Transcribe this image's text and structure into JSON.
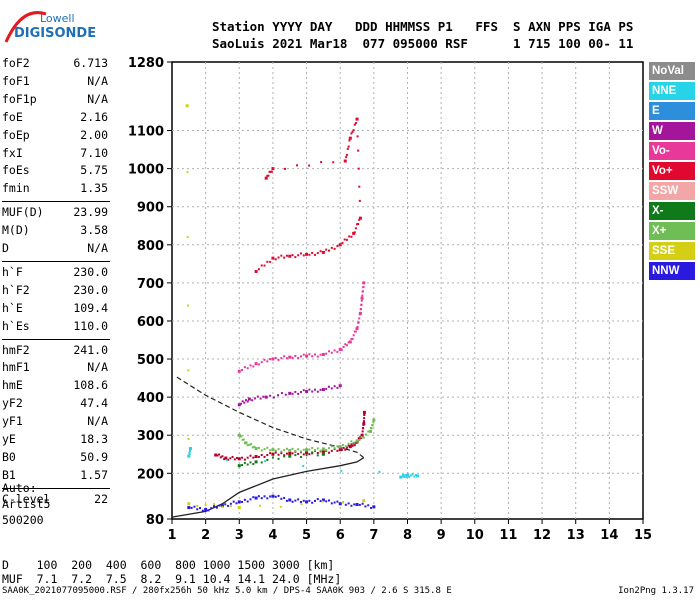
{
  "logo": {
    "line1": "Lowell",
    "line2": "DIGISONDE"
  },
  "header": {
    "line1": "Station YYYY DAY   DDD HHMMSS P1   FFS  S AXN PPS IGA PS",
    "line2": "SaoLuis 2021 Mar18  077 095000 RSF      1 715 100 00- 11"
  },
  "params": [
    {
      "name": "foF2",
      "value": "6.713"
    },
    {
      "name": "foF1",
      "value": "N/A"
    },
    {
      "name": "foF1p",
      "value": "N/A"
    },
    {
      "name": "foE",
      "value": "2.16"
    },
    {
      "name": "foEp",
      "value": "2.00"
    },
    {
      "name": "fxI",
      "value": "7.10"
    },
    {
      "name": "foEs",
      "value": "5.75"
    },
    {
      "name": "fmin",
      "value": "1.35"
    },
    {
      "name": "MUF(D)",
      "value": "23.99"
    },
    {
      "name": "M(D)",
      "value": "3.58"
    },
    {
      "name": "D",
      "value": "N/A"
    },
    {
      "name": "h`F",
      "value": "230.0"
    },
    {
      "name": "h`F2",
      "value": "230.0"
    },
    {
      "name": "h`E",
      "value": "109.4"
    },
    {
      "name": "h`Es",
      "value": "110.0"
    },
    {
      "name": "hmF2",
      "value": "241.0"
    },
    {
      "name": "hmF1",
      "value": "N/A"
    },
    {
      "name": "hmE",
      "value": "108.6"
    },
    {
      "name": "yF2",
      "value": "47.4"
    },
    {
      "name": "yF1",
      "value": "N/A"
    },
    {
      "name": "yE",
      "value": "18.3"
    },
    {
      "name": "B0",
      "value": "50.9"
    },
    {
      "name": "B1",
      "value": "1.57"
    },
    {
      "name": "C-level",
      "value": "22"
    }
  ],
  "auto": {
    "line1": "Auto:",
    "line2": "Artist5",
    "line3": "500200"
  },
  "legend": [
    {
      "label": "NoVal",
      "color": "#8c8c8c"
    },
    {
      "label": "NNE",
      "color": "#27d3e6"
    },
    {
      "label": "E",
      "color": "#2d8fdc"
    },
    {
      "label": "W",
      "color": "#a3159b"
    },
    {
      "label": "Vo-",
      "color": "#e8399b"
    },
    {
      "label": "Vo+",
      "color": "#e0082f"
    },
    {
      "label": "SSW",
      "color": "#f3a6a6"
    },
    {
      "label": "X-",
      "color": "#0f7a1a"
    },
    {
      "label": "X+",
      "color": "#6fbd55"
    },
    {
      "label": "SSE",
      "color": "#d4cf14"
    },
    {
      "label": "NNW",
      "color": "#2a1ae0"
    }
  ],
  "bottom": {
    "line1": "D    100  200  400  600  800 1000 1500 3000 [km]",
    "line2": "MUF  7.1  7.2  7.5  8.2  9.1 10.4 14.1 24.0 [MHz]"
  },
  "footer": {
    "left": "SAA0K_2021077095000.RSF / 280fx256h 50 kHz 5.0 km / DPS-4 SAA0K 903 / 2.6 S 315.8 E",
    "right": "Ion2Png 1.3.17"
  },
  "chart_data": {
    "type": "scatter",
    "xlim": [
      1,
      15
    ],
    "ylim": [
      80,
      1280
    ],
    "x_ticks": [
      1,
      2,
      3,
      4,
      5,
      6,
      7,
      8,
      9,
      10,
      11,
      12,
      13,
      14,
      15
    ],
    "y_ticks": [
      80,
      200,
      300,
      400,
      500,
      600,
      700,
      800,
      900,
      1000,
      1100,
      1280
    ],
    "grid": true,
    "legend_position": "right",
    "series": [
      {
        "name": "Vo+",
        "color": "#b5002a",
        "points": [
          [
            2.3,
            248
          ],
          [
            2.6,
            240
          ],
          [
            3.0,
            238
          ],
          [
            3.5,
            244
          ],
          [
            4.0,
            250
          ],
          [
            4.5,
            252
          ],
          [
            5.0,
            254
          ],
          [
            5.5,
            256
          ],
          [
            6.0,
            262
          ],
          [
            6.3,
            270
          ],
          [
            6.5,
            282
          ],
          [
            6.65,
            300
          ],
          [
            6.7,
            330
          ],
          [
            6.72,
            360
          ]
        ]
      },
      {
        "name": "Vo-",
        "color": "#e8399b",
        "points": [
          [
            3.0,
            468
          ],
          [
            3.5,
            488
          ],
          [
            4.0,
            500
          ],
          [
            4.5,
            505
          ],
          [
            5.0,
            508
          ],
          [
            5.5,
            512
          ],
          [
            6.0,
            525
          ],
          [
            6.3,
            545
          ],
          [
            6.5,
            580
          ],
          [
            6.6,
            620
          ],
          [
            6.65,
            660
          ],
          [
            6.7,
            700
          ]
        ]
      },
      {
        "name": "X+",
        "color": "#6fbd55",
        "points": [
          [
            3.0,
            300
          ],
          [
            3.2,
            280
          ],
          [
            3.5,
            265
          ],
          [
            4.0,
            262
          ],
          [
            4.5,
            260
          ],
          [
            5.0,
            262
          ],
          [
            5.5,
            264
          ],
          [
            6.0,
            270
          ],
          [
            6.5,
            285
          ],
          [
            6.9,
            310
          ],
          [
            7.0,
            340
          ]
        ]
      },
      {
        "name": "W",
        "color": "#a3159b",
        "points": [
          [
            3.0,
            380
          ],
          [
            3.3,
            395
          ],
          [
            3.8,
            400
          ],
          [
            4.5,
            410
          ],
          [
            5.0,
            415
          ],
          [
            5.5,
            420
          ],
          [
            6.0,
            430
          ]
        ]
      },
      {
        "name": "NNW",
        "color": "#2a1ae0",
        "points": [
          [
            1.5,
            110
          ],
          [
            2.0,
            105
          ],
          [
            2.5,
            115
          ],
          [
            3.0,
            125
          ],
          [
            3.5,
            135
          ],
          [
            4.0,
            140
          ],
          [
            4.5,
            130
          ],
          [
            5.0,
            125
          ],
          [
            5.5,
            130
          ],
          [
            6.0,
            120
          ],
          [
            6.5,
            118
          ],
          [
            7.0,
            112
          ]
        ]
      },
      {
        "name": "NNE",
        "color": "#27d3e6",
        "points": [
          [
            7.8,
            190
          ],
          [
            8.0,
            195
          ],
          [
            8.3,
            193
          ],
          [
            1.5,
            245
          ],
          [
            1.55,
            265
          ]
        ]
      },
      {
        "name": "SSE",
        "color": "#d4cf14",
        "points": [
          [
            1.45,
            1165
          ],
          [
            1.5,
            120
          ],
          [
            3.0,
            110
          ],
          [
            6.7,
            128
          ]
        ]
      },
      {
        "name": "X-",
        "color": "#0f7a1a",
        "points": [
          [
            3.0,
            220
          ],
          [
            3.5,
            230
          ],
          [
            4.5,
            245
          ],
          [
            5.5,
            250
          ]
        ]
      },
      {
        "name": "Vo+ high",
        "color": "#e0082f",
        "points": [
          [
            3.5,
            730
          ],
          [
            4.0,
            765
          ],
          [
            4.5,
            770
          ],
          [
            5.0,
            775
          ],
          [
            5.5,
            780
          ],
          [
            6.0,
            800
          ],
          [
            6.4,
            830
          ],
          [
            6.6,
            870
          ],
          [
            6.5,
            1130
          ],
          [
            6.3,
            1080
          ],
          [
            6.15,
            1020
          ],
          [
            4.0,
            1000
          ],
          [
            3.8,
            975
          ]
        ]
      }
    ],
    "profile_curves": [
      {
        "name": "solid",
        "points": [
          [
            1.0,
            85
          ],
          [
            2.0,
            100
          ],
          [
            2.5,
            120
          ],
          [
            3.0,
            150
          ],
          [
            4.0,
            185
          ],
          [
            5.0,
            205
          ],
          [
            6.0,
            220
          ],
          [
            6.5,
            230
          ],
          [
            6.7,
            241
          ],
          [
            6.5,
            255
          ],
          [
            6.0,
            268
          ],
          [
            5.0,
            290
          ],
          [
            4.0,
            320
          ],
          [
            3.0,
            360
          ],
          [
            2.0,
            405
          ],
          [
            1.1,
            455
          ]
        ]
      }
    ]
  }
}
